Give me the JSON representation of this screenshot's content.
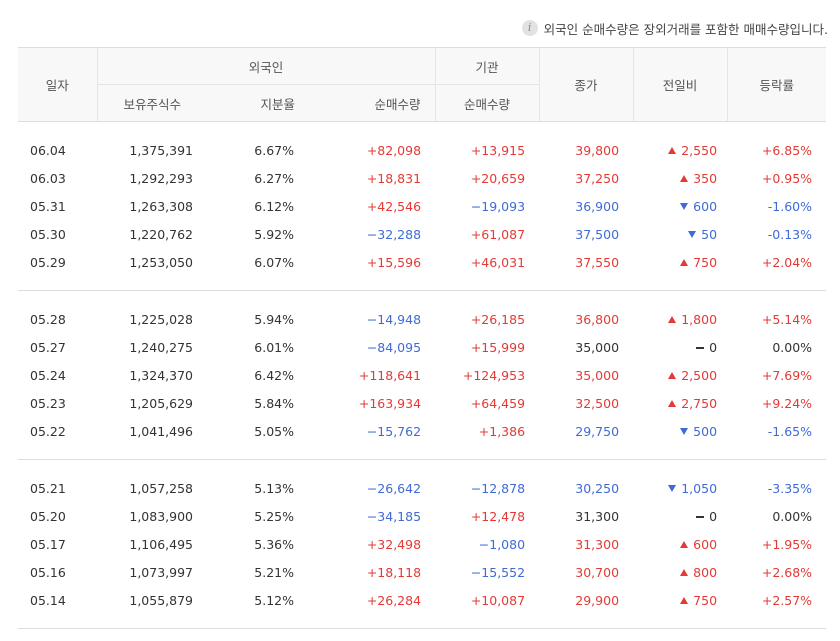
{
  "notice": "외국인 순매수량은 장외거래를 포함한 매매수량입니다.",
  "headers": {
    "date": "일자",
    "foreign": "외국인",
    "institution": "기관",
    "holdings": "보유주식수",
    "share_ratio": "지분율",
    "net_buy_foreign": "순매수량",
    "net_buy_inst": "순매수량",
    "close": "종가",
    "change": "전일비",
    "rate": "등락률"
  },
  "rows": [
    {
      "date": "06.04",
      "holdings": "1,375,391",
      "ratio": "6.67%",
      "foreign": "+82,098",
      "inst": "+13,915",
      "close": "39,800",
      "change": "2,550",
      "rate": "+6.85%"
    },
    {
      "date": "06.03",
      "holdings": "1,292,293",
      "ratio": "6.27%",
      "foreign": "+18,831",
      "inst": "+20,659",
      "close": "37,250",
      "change": "350",
      "rate": "+0.95%"
    },
    {
      "date": "05.31",
      "holdings": "1,263,308",
      "ratio": "6.12%",
      "foreign": "+42,546",
      "inst": "−19,093",
      "close": "36,900",
      "change": "600",
      "rate": "-1.60%"
    },
    {
      "date": "05.30",
      "holdings": "1,220,762",
      "ratio": "5.92%",
      "foreign": "−32,288",
      "inst": "+61,087",
      "close": "37,500",
      "change": "50",
      "rate": "-0.13%"
    },
    {
      "date": "05.29",
      "holdings": "1,253,050",
      "ratio": "6.07%",
      "foreign": "+15,596",
      "inst": "+46,031",
      "close": "37,550",
      "change": "750",
      "rate": "+2.04%"
    },
    {
      "date": "05.28",
      "holdings": "1,225,028",
      "ratio": "5.94%",
      "foreign": "−14,948",
      "inst": "+26,185",
      "close": "36,800",
      "change": "1,800",
      "rate": "+5.14%"
    },
    {
      "date": "05.27",
      "holdings": "1,240,275",
      "ratio": "6.01%",
      "foreign": "−84,095",
      "inst": "+15,999",
      "close": "35,000",
      "change": "0",
      "rate": "0.00%"
    },
    {
      "date": "05.24",
      "holdings": "1,324,370",
      "ratio": "6.42%",
      "foreign": "+118,641",
      "inst": "+124,953",
      "close": "35,000",
      "change": "2,500",
      "rate": "+7.69%"
    },
    {
      "date": "05.23",
      "holdings": "1,205,629",
      "ratio": "5.84%",
      "foreign": "+163,934",
      "inst": "+64,459",
      "close": "32,500",
      "change": "2,750",
      "rate": "+9.24%"
    },
    {
      "date": "05.22",
      "holdings": "1,041,496",
      "ratio": "5.05%",
      "foreign": "−15,762",
      "inst": "+1,386",
      "close": "29,750",
      "change": "500",
      "rate": "-1.65%"
    },
    {
      "date": "05.21",
      "holdings": "1,057,258",
      "ratio": "5.13%",
      "foreign": "−26,642",
      "inst": "−12,878",
      "close": "30,250",
      "change": "1,050",
      "rate": "-3.35%"
    },
    {
      "date": "05.20",
      "holdings": "1,083,900",
      "ratio": "5.25%",
      "foreign": "−34,185",
      "inst": "+12,478",
      "close": "31,300",
      "change": "0",
      "rate": "0.00%"
    },
    {
      "date": "05.17",
      "holdings": "1,106,495",
      "ratio": "5.36%",
      "foreign": "+32,498",
      "inst": "−1,080",
      "close": "31,300",
      "change": "600",
      "rate": "+1.95%"
    },
    {
      "date": "05.16",
      "holdings": "1,073,997",
      "ratio": "5.21%",
      "foreign": "+18,118",
      "inst": "−15,552",
      "close": "30,700",
      "change": "800",
      "rate": "+2.68%"
    },
    {
      "date": "05.14",
      "holdings": "1,055,879",
      "ratio": "5.12%",
      "foreign": "+26,284",
      "inst": "+10,087",
      "close": "29,900",
      "change": "750",
      "rate": "+2.57%"
    }
  ],
  "colors": {
    "up": "#e53935",
    "down": "#3f6ad8",
    "header_bg": "#f8f8f8"
  }
}
